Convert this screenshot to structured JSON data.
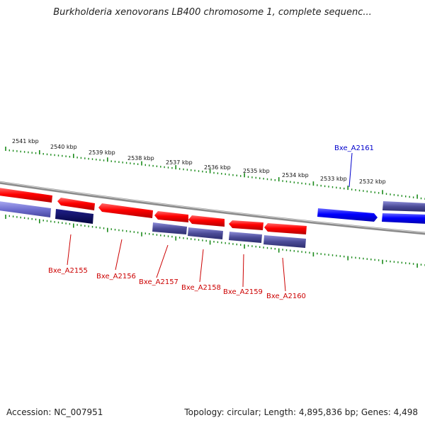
{
  "title": "Burkholderia xenovorans LB400 chromosome 1, complete sequenc...",
  "footer": {
    "accession": "Accession: NC_007951",
    "summary": "Topology: circular; Length: 4,895,836 bp; Genes: 4,498"
  },
  "scale": {
    "labels": [
      "2541 kbp",
      "2540 kbp",
      "2539 kbp",
      "2538 kbp",
      "2537 kbp",
      "2536 kbp",
      "2535 kbp",
      "2534 kbp",
      "2533 kbp",
      "2532 kbp"
    ]
  },
  "genes": [
    {
      "name": "Bxe_A2155",
      "color": "#cc0000"
    },
    {
      "name": "Bxe_A2156",
      "color": "#cc0000"
    },
    {
      "name": "Bxe_A2157",
      "color": "#cc0000"
    },
    {
      "name": "Bxe_A2158",
      "color": "#cc0000"
    },
    {
      "name": "Bxe_A2159",
      "color": "#cc0000"
    },
    {
      "name": "Bxe_A2160",
      "color": "#cc0000"
    },
    {
      "name": "Bxe_A2161",
      "color": "#0000cc"
    }
  ],
  "colors": {
    "forward_cds": "#ff0000",
    "reverse_cds": "#0000ff",
    "feature_light": "#5b5ba8",
    "feature_dark": "#0a0a5a",
    "backbone": "#8a8a8a",
    "tick": "#1a8a1a"
  }
}
